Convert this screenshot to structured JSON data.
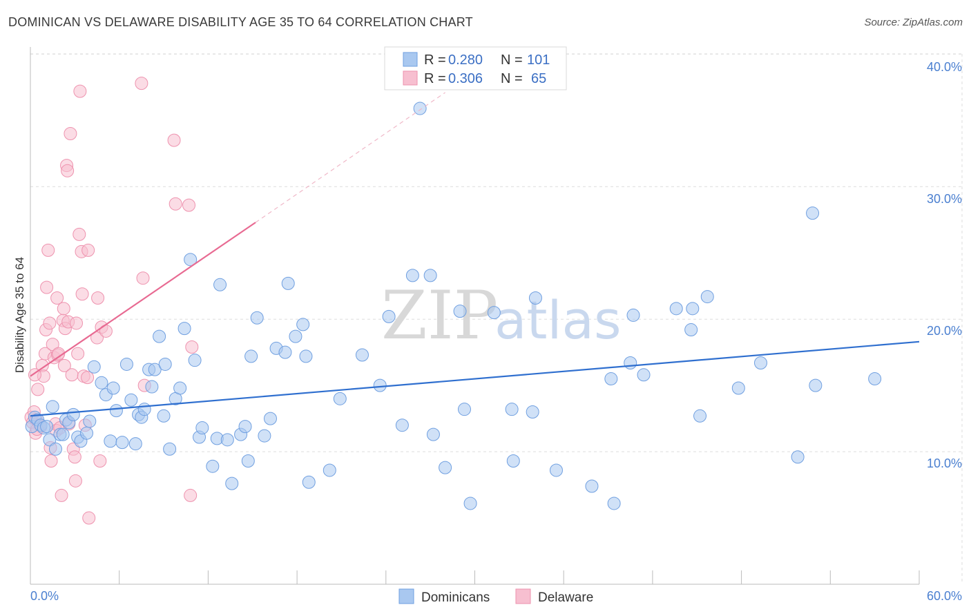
{
  "title": "DOMINICAN VS DELAWARE DISABILITY AGE 35 TO 64 CORRELATION CHART",
  "source": "Source: ZipAtlas.com",
  "colors": {
    "blue_fill": "#a9c8f0",
    "blue_stroke": "#6f9fe0",
    "blue_line": "#2f6fcf",
    "pink_fill": "#f7bfd0",
    "pink_stroke": "#ee92ae",
    "pink_line": "#e86a92",
    "axis_text": "#4a7fd0",
    "grid": "#dddddd"
  },
  "legend": {
    "r_label": "R =",
    "n_label": "N =",
    "rows": [
      {
        "series": "Dominicans",
        "r": "0.280",
        "n": "101"
      },
      {
        "series": "Delaware",
        "r": "0.306",
        "n": "65"
      }
    ]
  },
  "chart_data": {
    "type": "scatter",
    "title": "DOMINICAN VS DELAWARE DISABILITY AGE 35 TO 64 CORRELATION CHART",
    "xlabel": "",
    "ylabel": "Disability Age 35 to 64",
    "xlim": [
      0,
      60
    ],
    "ylim": [
      0,
      42
    ],
    "x_tick_labels": [
      "0.0%",
      "60.0%"
    ],
    "y_ticks": [
      10,
      20,
      30,
      40
    ],
    "y_tick_labels": [
      "10.0%",
      "20.0%",
      "30.0%",
      "40.0%"
    ],
    "watermark": {
      "zip": "ZIP",
      "atlas": "atlas"
    },
    "series": [
      {
        "name": "Dominicans",
        "color": "#a9c8f0",
        "trend": {
          "x": [
            0,
            60
          ],
          "y": [
            12.7,
            18.3
          ],
          "dashed_extension": false
        },
        "points": [
          [
            0.1,
            11.9
          ],
          [
            0.3,
            12.6
          ],
          [
            0.5,
            12.4
          ],
          [
            0.7,
            12.0
          ],
          [
            0.9,
            11.8
          ],
          [
            1.1,
            11.9
          ],
          [
            1.3,
            10.9
          ],
          [
            1.5,
            13.4
          ],
          [
            1.7,
            10.2
          ],
          [
            2.0,
            11.3
          ],
          [
            2.2,
            11.3
          ],
          [
            2.4,
            12.4
          ],
          [
            2.6,
            12.2
          ],
          [
            2.9,
            12.8
          ],
          [
            3.2,
            11.1
          ],
          [
            3.4,
            10.8
          ],
          [
            3.8,
            11.4
          ],
          [
            4.0,
            12.3
          ],
          [
            4.3,
            16.4
          ],
          [
            4.8,
            15.2
          ],
          [
            5.1,
            14.3
          ],
          [
            5.4,
            10.8
          ],
          [
            5.6,
            14.8
          ],
          [
            5.8,
            13.1
          ],
          [
            6.2,
            10.7
          ],
          [
            6.5,
            16.6
          ],
          [
            6.8,
            13.9
          ],
          [
            7.1,
            10.6
          ],
          [
            7.3,
            12.8
          ],
          [
            7.5,
            12.6
          ],
          [
            7.7,
            13.2
          ],
          [
            8.0,
            16.2
          ],
          [
            8.2,
            14.9
          ],
          [
            8.4,
            16.2
          ],
          [
            8.7,
            18.7
          ],
          [
            9.0,
            12.7
          ],
          [
            9.1,
            16.6
          ],
          [
            9.4,
            10.2
          ],
          [
            9.8,
            14.0
          ],
          [
            10.1,
            14.8
          ],
          [
            10.4,
            19.3
          ],
          [
            10.8,
            24.5
          ],
          [
            11.1,
            16.9
          ],
          [
            11.4,
            11.1
          ],
          [
            11.6,
            11.8
          ],
          [
            12.3,
            8.9
          ],
          [
            12.6,
            11.0
          ],
          [
            12.8,
            22.6
          ],
          [
            13.3,
            10.9
          ],
          [
            13.6,
            7.6
          ],
          [
            14.2,
            11.3
          ],
          [
            14.5,
            11.9
          ],
          [
            14.7,
            9.3
          ],
          [
            14.9,
            17.2
          ],
          [
            15.3,
            20.1
          ],
          [
            15.8,
            11.2
          ],
          [
            16.2,
            12.5
          ],
          [
            16.6,
            17.8
          ],
          [
            17.2,
            17.5
          ],
          [
            17.4,
            22.7
          ],
          [
            17.9,
            18.7
          ],
          [
            18.4,
            19.6
          ],
          [
            18.8,
            7.7
          ],
          [
            18.6,
            17.2
          ],
          [
            20.2,
            8.6
          ],
          [
            20.9,
            14.0
          ],
          [
            22.4,
            17.3
          ],
          [
            23.6,
            15.0
          ],
          [
            24.2,
            20.2
          ],
          [
            25.1,
            12.0
          ],
          [
            25.8,
            23.3
          ],
          [
            27.2,
            11.3
          ],
          [
            26.3,
            35.9
          ],
          [
            27.0,
            23.3
          ],
          [
            28.0,
            8.8
          ],
          [
            29.0,
            20.6
          ],
          [
            29.3,
            13.2
          ],
          [
            29.7,
            6.1
          ],
          [
            31.3,
            20.5
          ],
          [
            32.5,
            13.2
          ],
          [
            32.6,
            9.3
          ],
          [
            33.9,
            13.0
          ],
          [
            34.1,
            21.6
          ],
          [
            35.5,
            8.6
          ],
          [
            37.9,
            7.4
          ],
          [
            39.2,
            15.5
          ],
          [
            39.4,
            6.1
          ],
          [
            40.5,
            16.7
          ],
          [
            40.7,
            20.3
          ],
          [
            41.4,
            15.8
          ],
          [
            43.6,
            20.8
          ],
          [
            44.6,
            19.2
          ],
          [
            44.7,
            20.8
          ],
          [
            45.2,
            12.7
          ],
          [
            45.7,
            21.7
          ],
          [
            47.8,
            14.8
          ],
          [
            49.3,
            16.7
          ],
          [
            51.8,
            9.6
          ],
          [
            52.8,
            28.0
          ],
          [
            53.0,
            15.0
          ],
          [
            57.0,
            15.5
          ]
        ]
      },
      {
        "name": "Delaware",
        "color": "#f7bfd0",
        "trend": {
          "x": [
            0,
            15.2
          ],
          "y": [
            15.7,
            27.3
          ],
          "dashed_extension": true,
          "dashed_to": [
            28.0,
            37.1
          ]
        },
        "points": [
          [
            0.05,
            12.6
          ],
          [
            0.15,
            12.2
          ],
          [
            0.25,
            13.0
          ],
          [
            0.4,
            12.4
          ],
          [
            0.5,
            14.7
          ],
          [
            0.6,
            12.0
          ],
          [
            0.7,
            11.9
          ],
          [
            0.8,
            16.5
          ],
          [
            0.9,
            15.7
          ],
          [
            1.0,
            17.4
          ],
          [
            1.05,
            19.2
          ],
          [
            1.1,
            22.4
          ],
          [
            1.2,
            25.2
          ],
          [
            1.3,
            19.7
          ],
          [
            1.35,
            10.3
          ],
          [
            1.4,
            9.3
          ],
          [
            1.5,
            18.1
          ],
          [
            1.6,
            17.1
          ],
          [
            1.7,
            12.1
          ],
          [
            1.75,
            11.6
          ],
          [
            1.8,
            21.6
          ],
          [
            1.85,
            17.3
          ],
          [
            1.9,
            17.4
          ],
          [
            2.0,
            11.8
          ],
          [
            2.1,
            6.7
          ],
          [
            2.2,
            19.9
          ],
          [
            2.25,
            20.8
          ],
          [
            2.3,
            16.5
          ],
          [
            2.35,
            19.3
          ],
          [
            2.45,
            31.6
          ],
          [
            2.5,
            31.2
          ],
          [
            2.55,
            19.8
          ],
          [
            2.6,
            12.1
          ],
          [
            2.7,
            34.0
          ],
          [
            2.8,
            15.8
          ],
          [
            2.9,
            10.2
          ],
          [
            3.0,
            9.6
          ],
          [
            3.05,
            7.8
          ],
          [
            3.1,
            19.7
          ],
          [
            3.2,
            17.4
          ],
          [
            3.3,
            26.4
          ],
          [
            3.35,
            37.2
          ],
          [
            3.45,
            25.1
          ],
          [
            3.5,
            21.9
          ],
          [
            3.6,
            15.7
          ],
          [
            3.7,
            12.0
          ],
          [
            3.85,
            15.6
          ],
          [
            3.9,
            25.2
          ],
          [
            3.95,
            5.0
          ],
          [
            4.5,
            18.6
          ],
          [
            4.55,
            21.6
          ],
          [
            4.7,
            9.3
          ],
          [
            4.8,
            19.4
          ],
          [
            5.1,
            19.1
          ],
          [
            7.5,
            37.8
          ],
          [
            7.6,
            23.1
          ],
          [
            7.7,
            15.0
          ],
          [
            9.7,
            33.5
          ],
          [
            9.8,
            28.7
          ],
          [
            10.7,
            28.6
          ],
          [
            10.9,
            17.9
          ],
          [
            10.8,
            6.7
          ],
          [
            0.3,
            15.8
          ],
          [
            0.35,
            11.4
          ],
          [
            0.45,
            11.7
          ]
        ]
      }
    ]
  },
  "bottom_legend": [
    "Dominicans",
    "Delaware"
  ]
}
